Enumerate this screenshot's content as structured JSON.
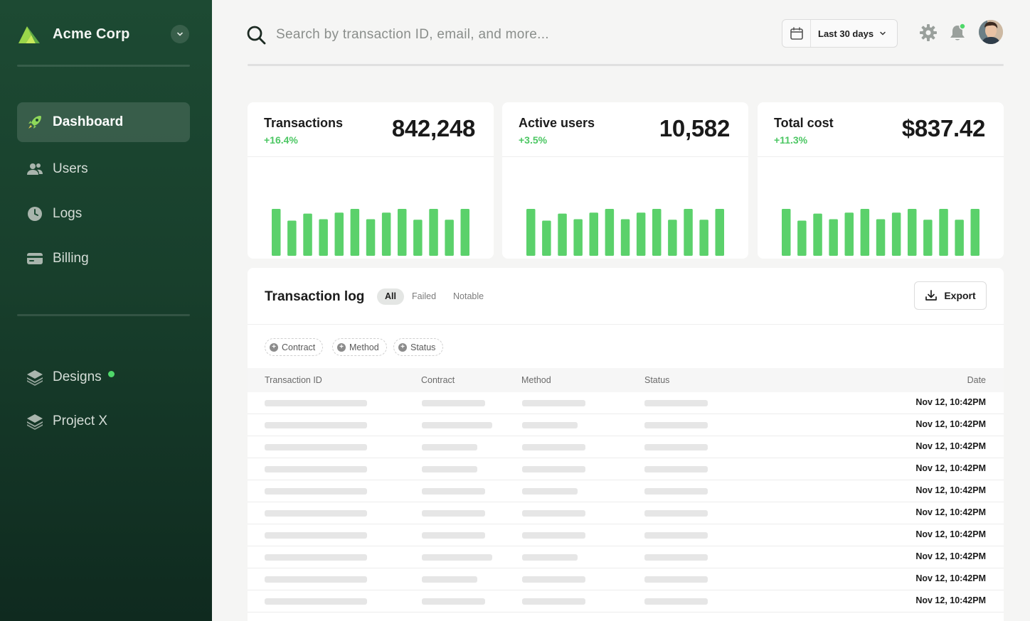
{
  "sidebar": {
    "brand_name": "Acme Corp",
    "nav": [
      {
        "label": "Dashboard",
        "icon": "rocket-icon",
        "active": true
      },
      {
        "label": "Users",
        "icon": "users-icon"
      },
      {
        "label": "Logs",
        "icon": "clock-icon"
      },
      {
        "label": "Billing",
        "icon": "credit-card-icon"
      }
    ],
    "projects": [
      {
        "label": "Designs",
        "icon": "layers-icon",
        "has_indicator": true
      },
      {
        "label": "Project X",
        "icon": "layers-icon"
      }
    ]
  },
  "topbar": {
    "search_placeholder": "Search by transaction ID, email, and more...",
    "date_range": "Last 30 days"
  },
  "stats": [
    {
      "title": "Transactions",
      "delta": "+16.4%",
      "value": "842,248"
    },
    {
      "title": "Active users",
      "delta": "+3.5%",
      "value": "10,582"
    },
    {
      "title": "Total cost",
      "delta": "+11.3%",
      "value": "$837.42"
    }
  ],
  "chart_data": [
    {
      "type": "bar",
      "ticks": [
        "10",
        "15",
        "20",
        "25",
        "30",
        "5"
      ],
      "values": [
        100,
        75,
        90,
        78,
        92,
        100,
        78,
        92,
        100,
        77,
        100,
        77,
        100
      ]
    },
    {
      "type": "bar",
      "ticks": [
        "10",
        "15",
        "20",
        "25",
        "30",
        "5"
      ],
      "values": [
        100,
        75,
        90,
        78,
        92,
        100,
        78,
        92,
        100,
        77,
        100,
        77,
        100
      ]
    },
    {
      "type": "bar",
      "ticks": [
        "10",
        "15",
        "20",
        "25",
        "30",
        "5"
      ],
      "values": [
        100,
        75,
        90,
        78,
        92,
        100,
        78,
        92,
        100,
        77,
        100,
        77,
        100
      ]
    }
  ],
  "transaction_log": {
    "title": "Transaction log",
    "filters": [
      "All",
      "Failed",
      "Notable"
    ],
    "active_filter": "All",
    "export_label": "Export",
    "chips": [
      "Contract",
      "Method",
      "Status"
    ],
    "columns": [
      "Transaction ID",
      "Contract",
      "Method",
      "Status",
      "Date"
    ],
    "rows": [
      "Nov 12, 10:42PM",
      "Nov 12, 10:42PM",
      "Nov 12, 10:42PM",
      "Nov 12, 10:42PM",
      "Nov 12, 10:42PM",
      "Nov 12, 10:42PM",
      "Nov 12, 10:42PM",
      "Nov 12, 10:42PM",
      "Nov 12, 10:42PM",
      "Nov 12, 10:42PM"
    ]
  },
  "colors": {
    "sidebar_bg": "#1d4a33",
    "accent_green": "#5bd16b",
    "delta_green": "#4cc763"
  }
}
